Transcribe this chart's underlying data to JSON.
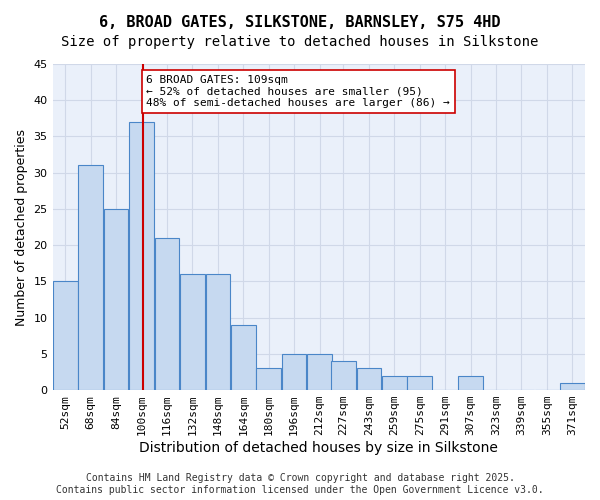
{
  "title": "6, BROAD GATES, SILKSTONE, BARNSLEY, S75 4HD",
  "subtitle": "Size of property relative to detached houses in Silkstone",
  "xlabel": "Distribution of detached houses by size in Silkstone",
  "ylabel": "Number of detached properties",
  "bins": [
    52,
    68,
    84,
    100,
    116,
    132,
    148,
    164,
    180,
    196,
    212,
    227,
    243,
    259,
    275,
    291,
    307,
    323,
    339,
    355,
    371
  ],
  "values": [
    15,
    31,
    25,
    37,
    21,
    16,
    16,
    9,
    3,
    5,
    5,
    4,
    3,
    2,
    2,
    0,
    2,
    0,
    0,
    0,
    1
  ],
  "bar_color": "#c6d9f0",
  "bar_edge_color": "#4a86c8",
  "ref_line_x": 109,
  "ref_line_color": "#cc0000",
  "annotation_text": "6 BROAD GATES: 109sqm\n← 52% of detached houses are smaller (95)\n48% of semi-detached houses are larger (86) →",
  "annotation_box_color": "#ffffff",
  "annotation_box_edge": "#cc0000",
  "ylim": [
    0,
    45
  ],
  "yticks": [
    0,
    5,
    10,
    15,
    20,
    25,
    30,
    35,
    40,
    45
  ],
  "grid_color": "#d0d8e8",
  "background_color": "#eaf0fa",
  "footer": "Contains HM Land Registry data © Crown copyright and database right 2025.\nContains public sector information licensed under the Open Government Licence v3.0.",
  "title_fontsize": 11,
  "subtitle_fontsize": 10,
  "axis_label_fontsize": 9,
  "tick_fontsize": 8,
  "annotation_fontsize": 8,
  "footer_fontsize": 7
}
